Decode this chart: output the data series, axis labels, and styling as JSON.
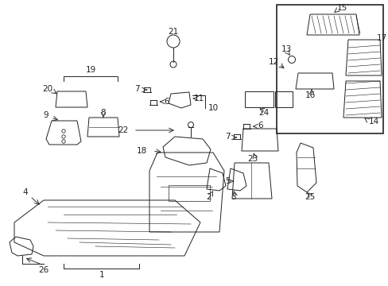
{
  "background_color": "#ffffff",
  "part_color": "#222222",
  "line_color": "#333333",
  "lw": 0.7
}
